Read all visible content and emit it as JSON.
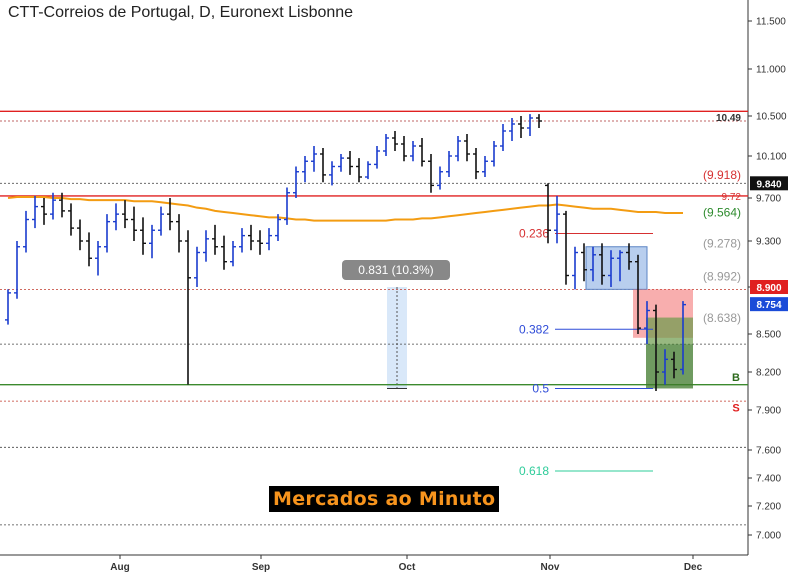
{
  "chart_data": {
    "type": "ohlc",
    "title": "CTT-Correios de Portugal, D, Euronext Lisbonne",
    "ylim": [
      6.85,
      11.75
    ],
    "y_ticks": [
      "11.500",
      "11.000",
      "10.500",
      "10.100",
      "9.700",
      "9.300",
      "8.900",
      "8.500",
      "8.200",
      "7.900",
      "7.600",
      "7.400",
      "7.200",
      "7.000"
    ],
    "x_ticks": [
      "Aug",
      "Sep",
      "Oct",
      "Nov",
      "Dec"
    ],
    "ohlc": [
      [
        8.62,
        8.88,
        8.58,
        8.85
      ],
      [
        8.85,
        9.3,
        8.8,
        9.25
      ],
      [
        9.25,
        9.58,
        9.2,
        9.5
      ],
      [
        9.5,
        9.72,
        9.42,
        9.62
      ],
      [
        9.62,
        9.7,
        9.45,
        9.55
      ],
      [
        9.55,
        9.75,
        9.5,
        9.68
      ],
      [
        9.68,
        9.75,
        9.52,
        9.58
      ],
      [
        9.58,
        9.65,
        9.35,
        9.42
      ],
      [
        9.42,
        9.5,
        9.22,
        9.3
      ],
      [
        9.3,
        9.38,
        9.08,
        9.15
      ],
      [
        9.15,
        9.3,
        9.0,
        9.25
      ],
      [
        9.25,
        9.55,
        9.2,
        9.48
      ],
      [
        9.48,
        9.65,
        9.4,
        9.55
      ],
      [
        9.55,
        9.68,
        9.42,
        9.5
      ],
      [
        9.5,
        9.62,
        9.3,
        9.4
      ],
      [
        9.4,
        9.52,
        9.18,
        9.28
      ],
      [
        9.28,
        9.45,
        9.15,
        9.4
      ],
      [
        9.4,
        9.62,
        9.35,
        9.55
      ],
      [
        9.55,
        9.7,
        9.4,
        9.48
      ],
      [
        9.48,
        9.55,
        9.2,
        9.3
      ],
      [
        9.3,
        9.4,
        8.1,
        8.98
      ],
      [
        8.98,
        9.25,
        8.9,
        9.2
      ],
      [
        9.2,
        9.4,
        9.12,
        9.32
      ],
      [
        9.32,
        9.45,
        9.18,
        9.25
      ],
      [
        9.25,
        9.35,
        9.05,
        9.12
      ],
      [
        9.12,
        9.3,
        9.08,
        9.25
      ],
      [
        9.25,
        9.42,
        9.2,
        9.35
      ],
      [
        9.35,
        9.45,
        9.22,
        9.3
      ],
      [
        9.3,
        9.4,
        9.18,
        9.28
      ],
      [
        9.28,
        9.42,
        9.22,
        9.35
      ],
      [
        9.35,
        9.55,
        9.3,
        9.5
      ],
      [
        9.5,
        9.8,
        9.45,
        9.75
      ],
      [
        9.75,
        10.0,
        9.7,
        9.95
      ],
      [
        9.95,
        10.1,
        9.85,
        10.05
      ],
      [
        10.05,
        10.2,
        9.95,
        10.12
      ],
      [
        10.12,
        10.18,
        9.85,
        9.92
      ],
      [
        9.92,
        10.05,
        9.82,
        10.0
      ],
      [
        10.0,
        10.12,
        9.95,
        10.08
      ],
      [
        10.08,
        10.15,
        9.92,
        10.0
      ],
      [
        10.0,
        10.08,
        9.85,
        9.9
      ],
      [
        9.9,
        10.05,
        9.88,
        10.02
      ],
      [
        10.02,
        10.2,
        9.98,
        10.15
      ],
      [
        10.15,
        10.32,
        10.1,
        10.28
      ],
      [
        10.28,
        10.35,
        10.15,
        10.22
      ],
      [
        10.22,
        10.3,
        10.05,
        10.1
      ],
      [
        10.1,
        10.25,
        10.05,
        10.2
      ],
      [
        10.2,
        10.28,
        10.0,
        10.05
      ],
      [
        10.05,
        10.12,
        9.75,
        9.82
      ],
      [
        9.82,
        10.0,
        9.78,
        9.95
      ],
      [
        9.95,
        10.15,
        9.9,
        10.1
      ],
      [
        10.1,
        10.3,
        10.05,
        10.25
      ],
      [
        10.25,
        10.32,
        10.05,
        10.12
      ],
      [
        10.12,
        10.18,
        9.88,
        9.95
      ],
      [
        9.95,
        10.1,
        9.9,
        10.05
      ],
      [
        10.05,
        10.25,
        10.0,
        10.2
      ],
      [
        10.2,
        10.42,
        10.15,
        10.35
      ],
      [
        10.35,
        10.48,
        10.25,
        10.42
      ],
      [
        10.42,
        10.5,
        10.28,
        10.38
      ],
      [
        10.38,
        10.52,
        10.3,
        10.48
      ],
      [
        10.48,
        10.52,
        10.38,
        10.45
      ],
      [
        9.82,
        9.84,
        9.28,
        9.4
      ],
      [
        9.4,
        9.72,
        9.28,
        9.55
      ],
      [
        9.55,
        9.58,
        8.92,
        9.0
      ],
      [
        9.0,
        9.25,
        8.88,
        9.2
      ],
      [
        9.2,
        9.28,
        8.95,
        9.05
      ],
      [
        9.05,
        9.25,
        8.95,
        9.18
      ],
      [
        9.18,
        9.28,
        8.92,
        9.0
      ],
      [
        9.0,
        9.22,
        8.9,
        9.15
      ],
      [
        9.15,
        9.22,
        8.95,
        9.2
      ],
      [
        9.2,
        9.28,
        9.05,
        9.12
      ],
      [
        9.12,
        9.18,
        8.5,
        8.55
      ],
      [
        8.55,
        8.78,
        8.42,
        8.7
      ],
      [
        8.7,
        8.75,
        8.05,
        8.2
      ],
      [
        8.2,
        8.38,
        8.1,
        8.3
      ],
      [
        8.3,
        8.36,
        8.15,
        8.22
      ],
      [
        8.22,
        8.78,
        8.18,
        8.75
      ]
    ],
    "ma": [
      9.7,
      9.71,
      9.71,
      9.71,
      9.71,
      9.7,
      9.7,
      9.69,
      9.69,
      9.68,
      9.68,
      9.68,
      9.68,
      9.68,
      9.67,
      9.67,
      9.67,
      9.66,
      9.65,
      9.64,
      9.63,
      9.61,
      9.6,
      9.58,
      9.57,
      9.56,
      9.55,
      9.54,
      9.53,
      9.52,
      9.52,
      9.51,
      9.5,
      9.5,
      9.49,
      9.49,
      9.49,
      9.49,
      9.49,
      9.49,
      9.49,
      9.49,
      9.49,
      9.5,
      9.5,
      9.5,
      9.51,
      9.51,
      9.52,
      9.53,
      9.54,
      9.55,
      9.56,
      9.57,
      9.58,
      9.59,
      9.6,
      9.61,
      9.62,
      9.63,
      9.63,
      9.64,
      9.63,
      9.62,
      9.61,
      9.6,
      9.6,
      9.6,
      9.59,
      9.58,
      9.57,
      9.57,
      9.57,
      9.56,
      9.56,
      9.56
    ],
    "ma_color": "#f39c12",
    "levels": [
      {
        "value": 10.55,
        "style": "solid",
        "color": "#e02020"
      },
      {
        "value": 10.45,
        "style": "dashed",
        "color": "#a33"
      },
      {
        "value": 9.84,
        "style": "dashed",
        "color": "#555"
      },
      {
        "value": 9.72,
        "style": "solid",
        "color": "#e02020"
      },
      {
        "value": 8.88,
        "style": "dashed",
        "color": "#c0392b"
      },
      {
        "value": 8.42,
        "style": "dashed",
        "color": "#444"
      },
      {
        "value": 8.1,
        "style": "solid",
        "color": "#3c8a2e"
      },
      {
        "value": 7.97,
        "style": "dashed",
        "color": "#c0392b"
      },
      {
        "value": 7.62,
        "style": "dashed",
        "color": "#444"
      },
      {
        "value": 7.07,
        "style": "dashed",
        "color": "#444"
      }
    ],
    "fib": [
      {
        "label": "0.236",
        "value": 9.37,
        "color": "#d63031"
      },
      {
        "label": "0.382",
        "value": 8.54,
        "color": "#2e4bd8"
      },
      {
        "label": "0.5",
        "value": 8.07,
        "color": "#2e4bd8"
      },
      {
        "label": "0.618",
        "value": 7.45,
        "color": "#2ecc9a"
      }
    ],
    "right_labels": [
      {
        "text": "10.49",
        "value": 10.49,
        "color": "#333",
        "boxed": false
      },
      {
        "text": "(9.918)",
        "value": 9.918,
        "color": "#d63031",
        "boxed": false
      },
      {
        "text": "9.72",
        "value": 9.72,
        "color": "#d63031",
        "boxed": false
      },
      {
        "text": "(9.564)",
        "value": 9.564,
        "color": "#2e8b2e",
        "boxed": false
      },
      {
        "text": "(9.278)",
        "value": 9.278,
        "color": "#999",
        "boxed": false
      },
      {
        "text": "(8.992)",
        "value": 8.992,
        "color": "#999",
        "boxed": false
      },
      {
        "text": "(8.638)",
        "value": 8.638,
        "color": "#999",
        "boxed": false
      }
    ],
    "price_tags": [
      {
        "text": "9.840",
        "value": 9.84,
        "bg": "#111"
      },
      {
        "text": "8.900",
        "value": 8.9,
        "bg": "#e02020"
      },
      {
        "text": "8.754",
        "value": 8.754,
        "bg": "#1a4bd8"
      }
    ],
    "markers": [
      {
        "text": "B",
        "value": 8.16,
        "color": "#2e6b1e"
      },
      {
        "text": "S",
        "value": 7.92,
        "color": "#e02020"
      }
    ],
    "measure": {
      "text": "0.831 (10.3%)",
      "from": 8.07,
      "to": 8.9
    }
  },
  "brand": "Mercados ao Minuto"
}
